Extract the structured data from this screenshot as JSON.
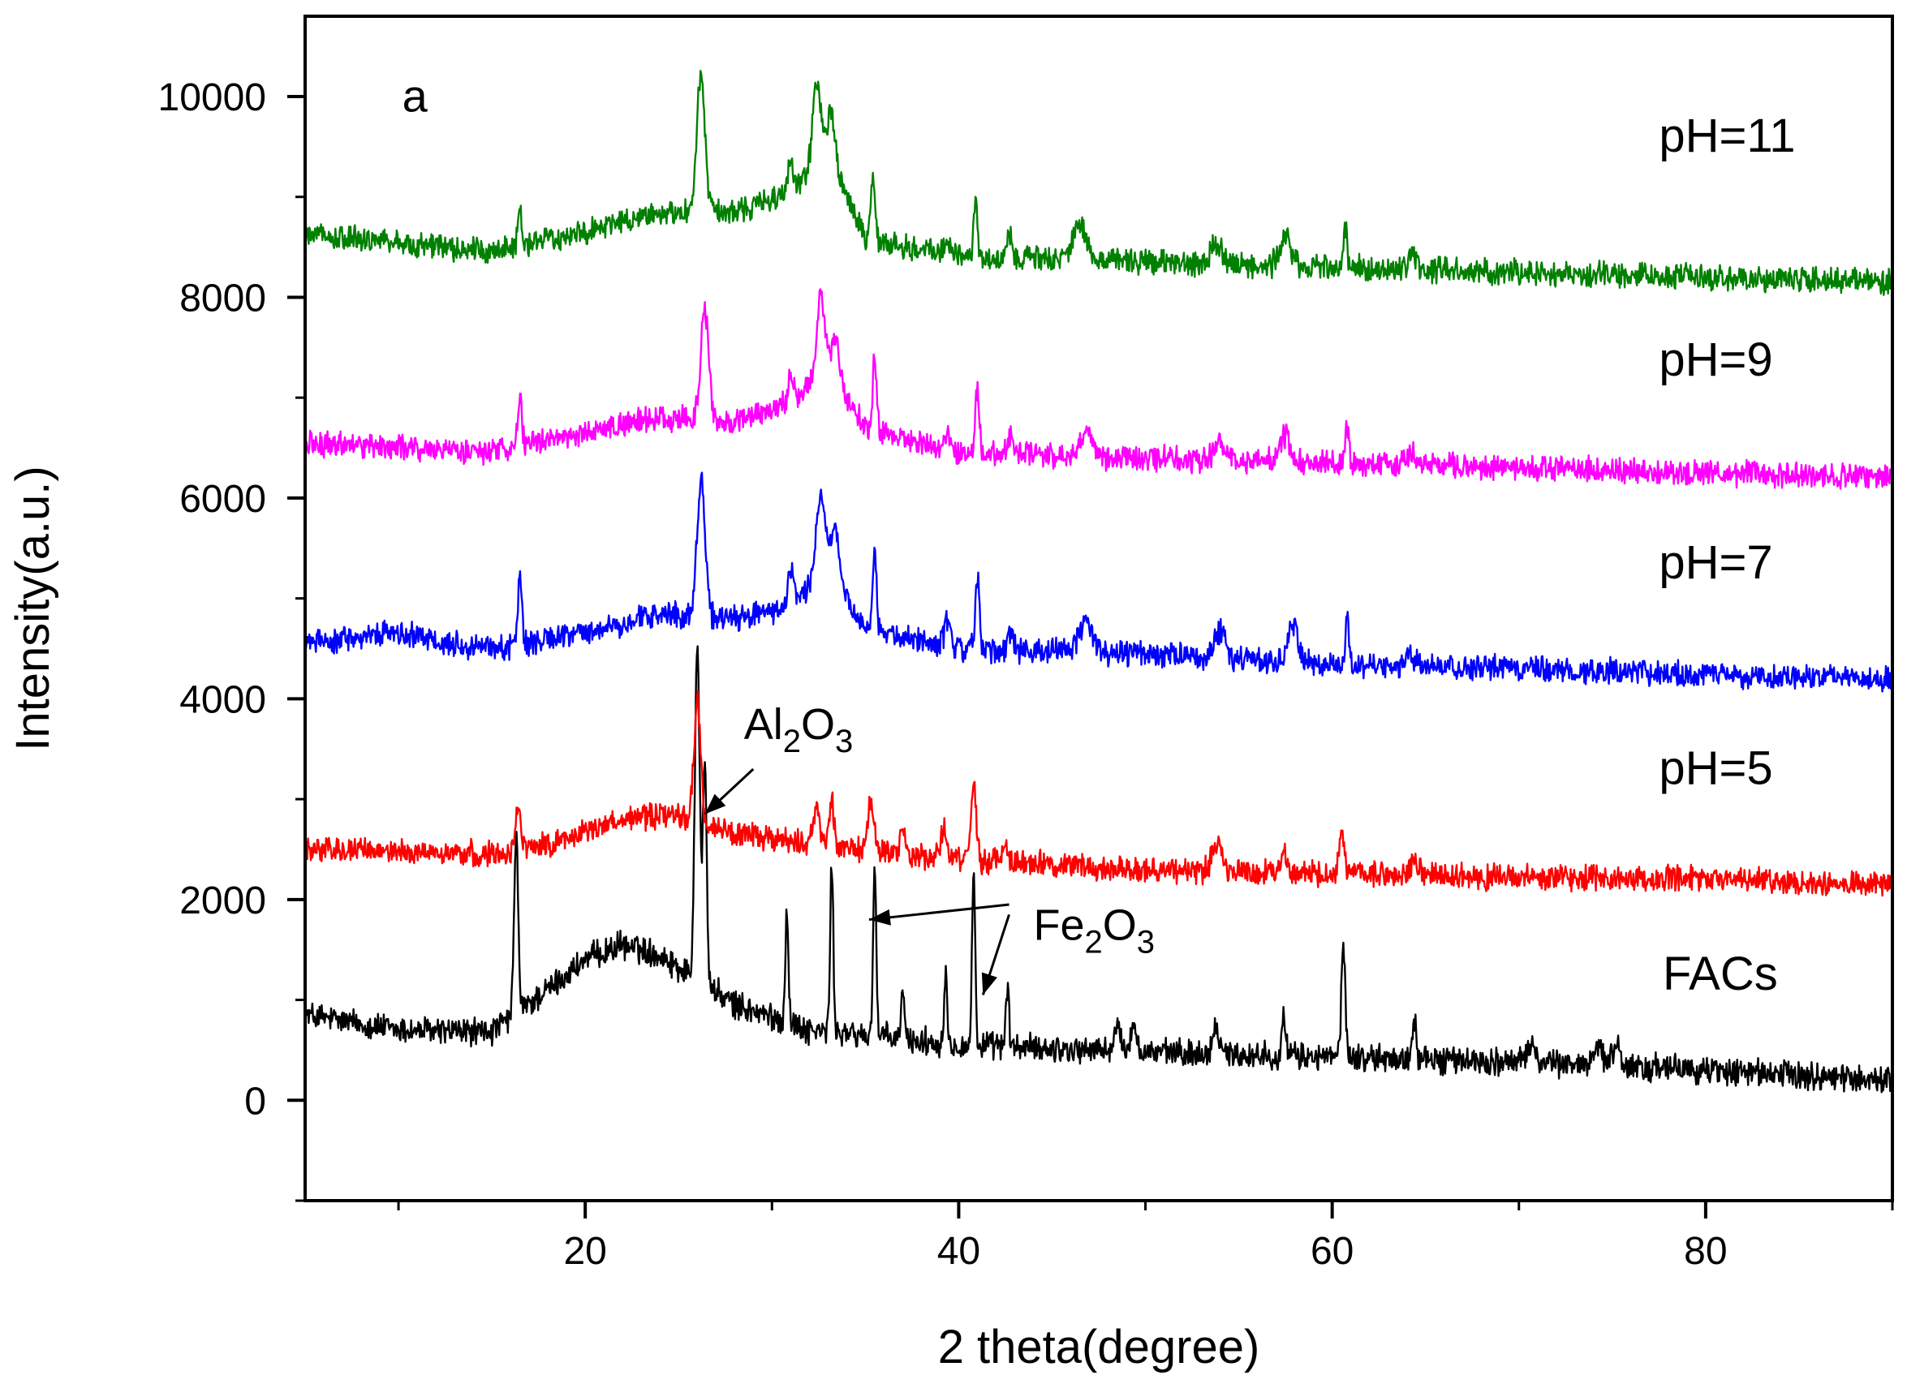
{
  "chart_data": {
    "type": "line",
    "panel_label": "a",
    "xlabel": "2 theta(degree)",
    "ylabel": "Intensity(a.u.)",
    "xlim": [
      5,
      90
    ],
    "ylim": [
      -1000,
      10800
    ],
    "xticks": [
      20,
      40,
      60,
      80
    ],
    "yticks": [
      0,
      2000,
      4000,
      6000,
      8000,
      10000
    ],
    "xtick_labels": [
      "20",
      "40",
      "60",
      "80"
    ],
    "ytick_labels": [
      "0",
      "2000",
      "4000",
      "6000",
      "8000",
      "10000"
    ],
    "grid": false,
    "legend": "none; series labeled inline at right",
    "series": [
      {
        "name": "FACs",
        "color": "#000000",
        "baseline": [
          [
            5,
            850
          ],
          [
            10,
            700
          ],
          [
            15,
            680
          ],
          [
            18,
            1100
          ],
          [
            20,
            1400
          ],
          [
            22,
            1550
          ],
          [
            24,
            1450
          ],
          [
            26,
            1200
          ],
          [
            28,
            950
          ],
          [
            32,
            700
          ],
          [
            40,
            550
          ],
          [
            50,
            480
          ],
          [
            60,
            430
          ],
          [
            70,
            380
          ],
          [
            80,
            300
          ],
          [
            90,
            200
          ]
        ],
        "peaks": [
          [
            16.3,
            1800,
            0.15
          ],
          [
            26.0,
            3400,
            0.18
          ],
          [
            26.4,
            2200,
            0.15
          ],
          [
            30.8,
            1100,
            0.12
          ],
          [
            33.2,
            1650,
            0.12
          ],
          [
            35.5,
            1700,
            0.12
          ],
          [
            37.0,
            500,
            0.12
          ],
          [
            39.3,
            700,
            0.12
          ],
          [
            40.8,
            1700,
            0.12
          ],
          [
            42.6,
            600,
            0.12
          ],
          [
            48.5,
            200,
            0.3
          ],
          [
            49.4,
            280,
            0.2
          ],
          [
            53.8,
            250,
            0.3
          ],
          [
            57.4,
            350,
            0.15
          ],
          [
            60.6,
            1100,
            0.15
          ],
          [
            64.4,
            400,
            0.15
          ],
          [
            70.7,
            200,
            0.3
          ],
          [
            74.2,
            250,
            0.3
          ],
          [
            75.2,
            200,
            0.3
          ]
        ],
        "noise": 220
      },
      {
        "name": "pH=5",
        "color": "#ff0000",
        "baseline": [
          [
            5,
            2500
          ],
          [
            15,
            2450
          ],
          [
            18,
            2550
          ],
          [
            22,
            2800
          ],
          [
            25,
            2850
          ],
          [
            28,
            2650
          ],
          [
            32,
            2550
          ],
          [
            40,
            2400
          ],
          [
            50,
            2300
          ],
          [
            60,
            2250
          ],
          [
            70,
            2220
          ],
          [
            80,
            2200
          ],
          [
            90,
            2150
          ]
        ],
        "peaks": [
          [
            16.4,
            350,
            0.25
          ],
          [
            26.0,
            1200,
            0.25
          ],
          [
            32.4,
            350,
            0.25
          ],
          [
            33.2,
            450,
            0.2
          ],
          [
            35.3,
            550,
            0.2
          ],
          [
            37.0,
            250,
            0.2
          ],
          [
            39.2,
            300,
            0.2
          ],
          [
            40.8,
            800,
            0.18
          ],
          [
            42.5,
            200,
            0.2
          ],
          [
            53.8,
            300,
            0.35
          ],
          [
            57.4,
            200,
            0.3
          ],
          [
            60.5,
            400,
            0.2
          ],
          [
            64.4,
            150,
            0.3
          ]
        ],
        "noise": 200
      },
      {
        "name": "pH=7",
        "color": "#0000ff",
        "baseline": [
          [
            5,
            4550
          ],
          [
            10,
            4650
          ],
          [
            15,
            4500
          ],
          [
            20,
            4650
          ],
          [
            24,
            4850
          ],
          [
            28,
            4800
          ],
          [
            31,
            4900
          ],
          [
            33,
            5300
          ],
          [
            35,
            4700
          ],
          [
            40,
            4500
          ],
          [
            50,
            4450
          ],
          [
            60,
            4350
          ],
          [
            70,
            4300
          ],
          [
            80,
            4250
          ],
          [
            90,
            4200
          ]
        ],
        "peaks": [
          [
            16.5,
            700,
            0.15
          ],
          [
            26.2,
            1350,
            0.3
          ],
          [
            31.0,
            350,
            0.2
          ],
          [
            32.6,
            800,
            0.35
          ],
          [
            33.4,
            500,
            0.3
          ],
          [
            35.5,
            800,
            0.15
          ],
          [
            39.4,
            250,
            0.2
          ],
          [
            41.0,
            700,
            0.15
          ],
          [
            42.8,
            200,
            0.2
          ],
          [
            46.8,
            300,
            0.5
          ],
          [
            54.0,
            250,
            0.4
          ],
          [
            57.9,
            350,
            0.4
          ],
          [
            60.8,
            400,
            0.15
          ],
          [
            64.2,
            100,
            0.3
          ]
        ],
        "noise": 200
      },
      {
        "name": "pH=9",
        "color": "#ff00ff",
        "baseline": [
          [
            5,
            6550
          ],
          [
            15,
            6450
          ],
          [
            20,
            6650
          ],
          [
            24,
            6800
          ],
          [
            28,
            6750
          ],
          [
            31,
            6950
          ],
          [
            33,
            7300
          ],
          [
            35,
            6700
          ],
          [
            40,
            6450
          ],
          [
            50,
            6400
          ],
          [
            60,
            6350
          ],
          [
            70,
            6300
          ],
          [
            80,
            6250
          ],
          [
            90,
            6200
          ]
        ],
        "peaks": [
          [
            16.5,
            500,
            0.15
          ],
          [
            26.4,
            1100,
            0.3
          ],
          [
            31.0,
            300,
            0.2
          ],
          [
            32.6,
            800,
            0.3
          ],
          [
            33.4,
            400,
            0.3
          ],
          [
            35.5,
            700,
            0.15
          ],
          [
            39.4,
            200,
            0.2
          ],
          [
            41.0,
            650,
            0.15
          ],
          [
            42.8,
            200,
            0.2
          ],
          [
            46.8,
            250,
            0.5
          ],
          [
            54.0,
            200,
            0.4
          ],
          [
            57.5,
            250,
            0.4
          ],
          [
            60.8,
            350,
            0.15
          ],
          [
            64.3,
            100,
            0.3
          ]
        ],
        "noise": 200
      },
      {
        "name": "pH=11",
        "color": "#008000",
        "baseline": [
          [
            5,
            8650
          ],
          [
            15,
            8450
          ],
          [
            20,
            8650
          ],
          [
            24,
            8850
          ],
          [
            28,
            8850
          ],
          [
            31,
            9050
          ],
          [
            33,
            9400
          ],
          [
            35,
            8600
          ],
          [
            40,
            8400
          ],
          [
            50,
            8350
          ],
          [
            60,
            8300
          ],
          [
            70,
            8250
          ],
          [
            80,
            8200
          ],
          [
            90,
            8150
          ]
        ],
        "peaks": [
          [
            16.5,
            400,
            0.15
          ],
          [
            26.2,
            1400,
            0.3
          ],
          [
            31.0,
            300,
            0.2
          ],
          [
            32.4,
            900,
            0.3
          ],
          [
            33.2,
            500,
            0.3
          ],
          [
            35.4,
            650,
            0.15
          ],
          [
            39.4,
            150,
            0.2
          ],
          [
            40.9,
            600,
            0.15
          ],
          [
            42.7,
            250,
            0.2
          ],
          [
            46.5,
            350,
            0.5
          ],
          [
            53.8,
            200,
            0.4
          ],
          [
            57.5,
            300,
            0.4
          ],
          [
            60.7,
            400,
            0.15
          ],
          [
            64.3,
            100,
            0.3
          ]
        ],
        "noise": 200
      }
    ],
    "series_labels": [
      {
        "text": "pH=11",
        "x": 77.5,
        "y": 9450
      },
      {
        "text": "pH=9",
        "x": 77.5,
        "y": 7220
      },
      {
        "text": "pH=7",
        "x": 77.5,
        "y": 5200
      },
      {
        "text": "pH=5",
        "x": 77.5,
        "y": 3150
      },
      {
        "text": "FACs",
        "x": 77.7,
        "y": 1100
      }
    ],
    "annotations": [
      {
        "label": {
          "main": "Al",
          "sub1": "2",
          "mid": "O",
          "sub2": "3"
        },
        "text_at": [
          28.5,
          3600
        ],
        "arrows": [
          {
            "from": [
              29.0,
              3300
            ],
            "to": [
              26.4,
              2850
            ]
          }
        ]
      },
      {
        "label": {
          "main": "Fe",
          "sub1": "2",
          "mid": "O",
          "sub2": "3"
        },
        "text_at": [
          44.0,
          1600
        ],
        "arrows": [
          {
            "from": [
              42.7,
              1950
            ],
            "to": [
              35.2,
              1800
            ]
          },
          {
            "from": [
              42.7,
              1850
            ],
            "to": [
              41.3,
              1050
            ]
          }
        ]
      }
    ]
  }
}
